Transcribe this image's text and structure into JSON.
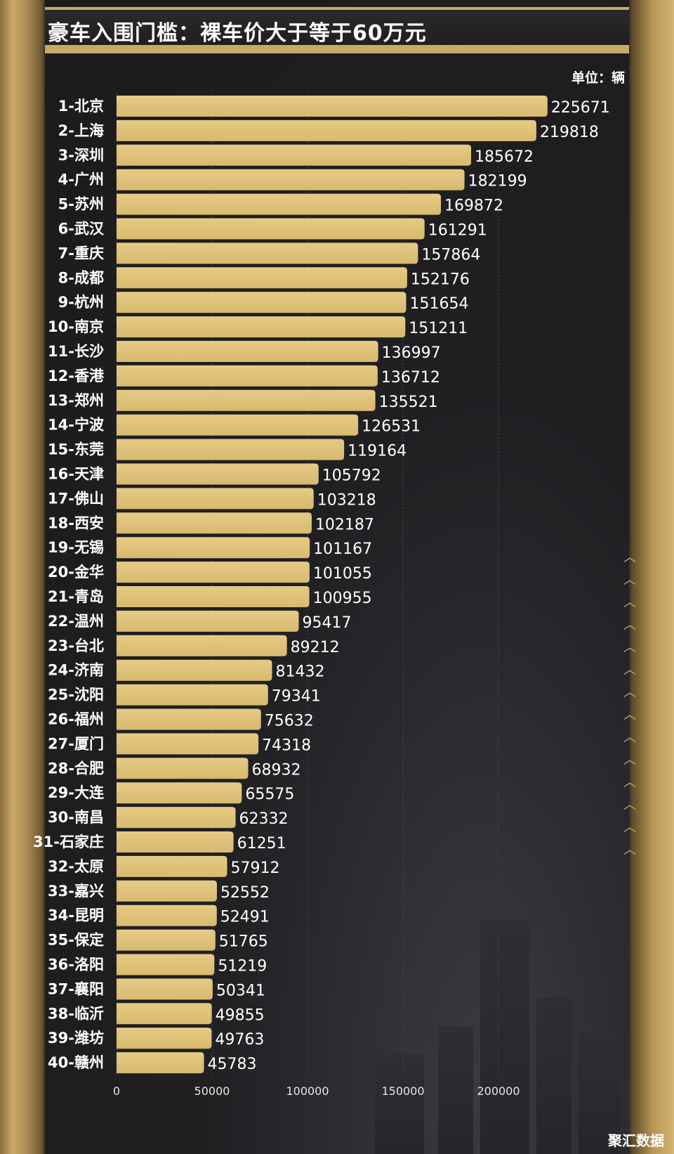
{
  "watermark": "聚汇数据",
  "chart_data": {
    "type": "bar",
    "orientation": "horizontal",
    "title": "豪车入围门槛：裸车价大于等于60万元",
    "unit_label": "单位：辆",
    "xlim": [
      0,
      250000
    ],
    "xticks": [
      0,
      50000,
      100000,
      150000,
      200000
    ],
    "xtick_labels": [
      "0",
      "50000",
      "100000",
      "150000",
      "200000"
    ],
    "grid": true,
    "bar_color": "#d8b96e",
    "categories": [
      "1-北京",
      "2-上海",
      "3-深圳",
      "4-广州",
      "5-苏州",
      "6-武汉",
      "7-重庆",
      "8-成都",
      "9-杭州",
      "10-南京",
      "11-长沙",
      "12-香港",
      "13-郑州",
      "14-宁波",
      "15-东莞",
      "16-天津",
      "17-佛山",
      "18-西安",
      "19-无锡",
      "20-金华",
      "21-青岛",
      "22-温州",
      "23-台北",
      "24-济南",
      "25-沈阳",
      "26-福州",
      "27-厦门",
      "28-合肥",
      "29-大连",
      "30-南昌",
      "31-石家庄",
      "32-太原",
      "33-嘉兴",
      "34-昆明",
      "35-保定",
      "36-洛阳",
      "37-襄阳",
      "38-临沂",
      "39-潍坊",
      "40-赣州"
    ],
    "values": [
      225671,
      219818,
      185672,
      182199,
      169872,
      161291,
      157864,
      152176,
      151654,
      151211,
      136997,
      136712,
      135521,
      126531,
      119164,
      105792,
      103218,
      102187,
      101167,
      101055,
      100955,
      95417,
      89212,
      81432,
      79341,
      75632,
      74318,
      68932,
      65575,
      62332,
      61251,
      57912,
      52552,
      52491,
      51765,
      51219,
      50341,
      49855,
      49763,
      45783
    ]
  }
}
